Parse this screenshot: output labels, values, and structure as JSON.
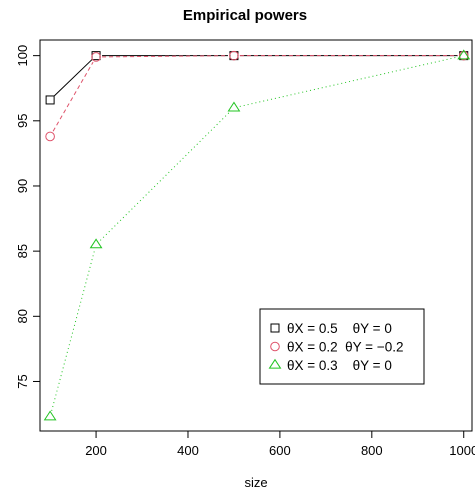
{
  "chart_data": {
    "type": "line",
    "title": "Empirical powers",
    "xlabel": "size",
    "ylabel": "",
    "xlim": [
      78,
      1018
    ],
    "ylim": [
      71.2,
      101.2
    ],
    "xticks": [
      200,
      400,
      600,
      800,
      1000
    ],
    "yticks": [
      75,
      80,
      85,
      90,
      95,
      100
    ],
    "grid": false,
    "legend_position": "bottom-right",
    "series": [
      {
        "name": "θX = 0.5    θY = 0",
        "color": "#000000",
        "marker": "square",
        "line": "solid",
        "x": [
          100,
          200,
          500,
          1000
        ],
        "y": [
          96.6,
          100,
          100,
          100
        ]
      },
      {
        "name": "θX = 0.2  θY = −0.2",
        "color": "#df536b",
        "marker": "circle",
        "line": "dashed",
        "x": [
          100,
          200,
          500,
          1000
        ],
        "y": [
          93.8,
          99.9,
          100,
          100
        ]
      },
      {
        "name": "θX = 0.3    θY = 0",
        "color": "#22c422",
        "marker": "triangle",
        "line": "dotted",
        "x": [
          100,
          200,
          500,
          1000
        ],
        "y": [
          72.3,
          85.5,
          96.0,
          100
        ]
      }
    ]
  }
}
